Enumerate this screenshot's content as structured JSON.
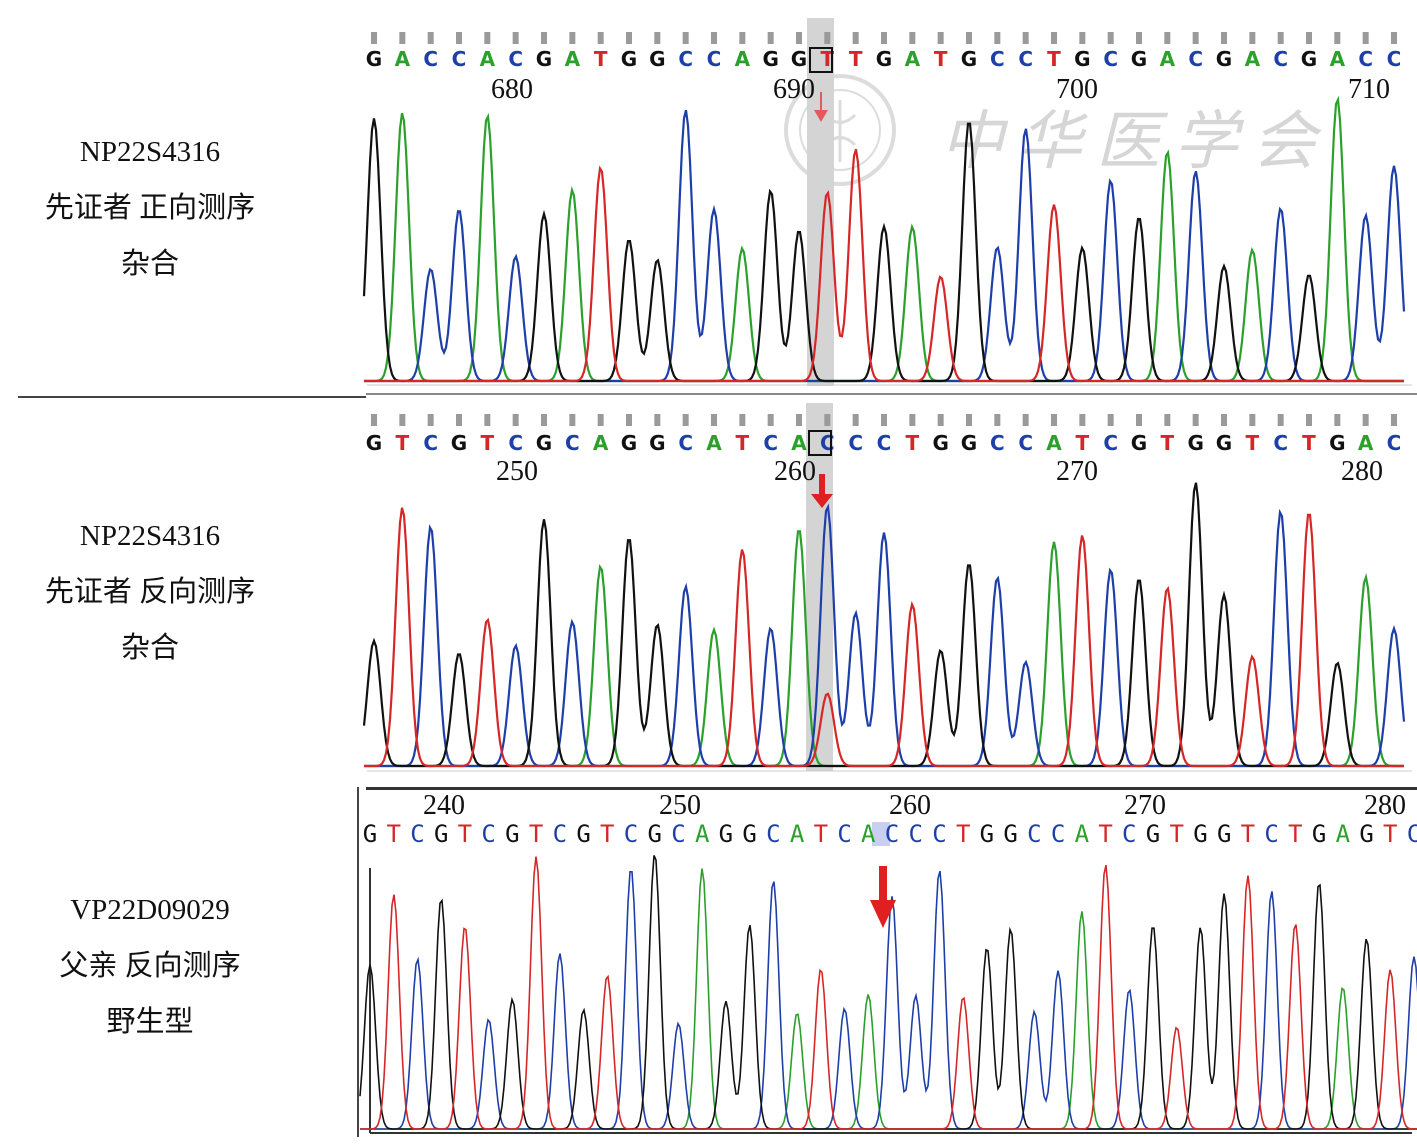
{
  "colors": {
    "A": "#2ca02c",
    "C": "#1f3fa8",
    "G": "#111111",
    "T": "#d62728",
    "highlight": "#cfcfcf",
    "arrow": "#e02020"
  },
  "panels": [
    {
      "sample_id": "NP22S4316",
      "description": "先证者 正向测序",
      "genotype": "杂合",
      "sequence": "GACCACGATGGCCAGGTTGATGCCTGCGACGACGACC",
      "positions": [
        "680",
        "690",
        "700",
        "710"
      ],
      "highlight_index": 16
    },
    {
      "sample_id": "NP22S4316",
      "description": "先证者 反向测序",
      "genotype": "杂合",
      "sequence": "GTCGTCGCAGGCATCACCCTGGCCATCGTGGTCTGAC",
      "positions": [
        "250",
        "260",
        "270",
        "280"
      ],
      "highlight_index": 16
    },
    {
      "sample_id": "VP22D09029",
      "description": "父亲 反向测序",
      "genotype": "野生型",
      "sequence": "GTCGTCGTCGTCGCAGGCATCACCCTGGCCATCGTGGTCTGAGTC",
      "positions": [
        "240",
        "250",
        "260",
        "270",
        "280"
      ],
      "highlight_index": 22
    }
  ],
  "watermark": {
    "text": "中华医学会"
  }
}
